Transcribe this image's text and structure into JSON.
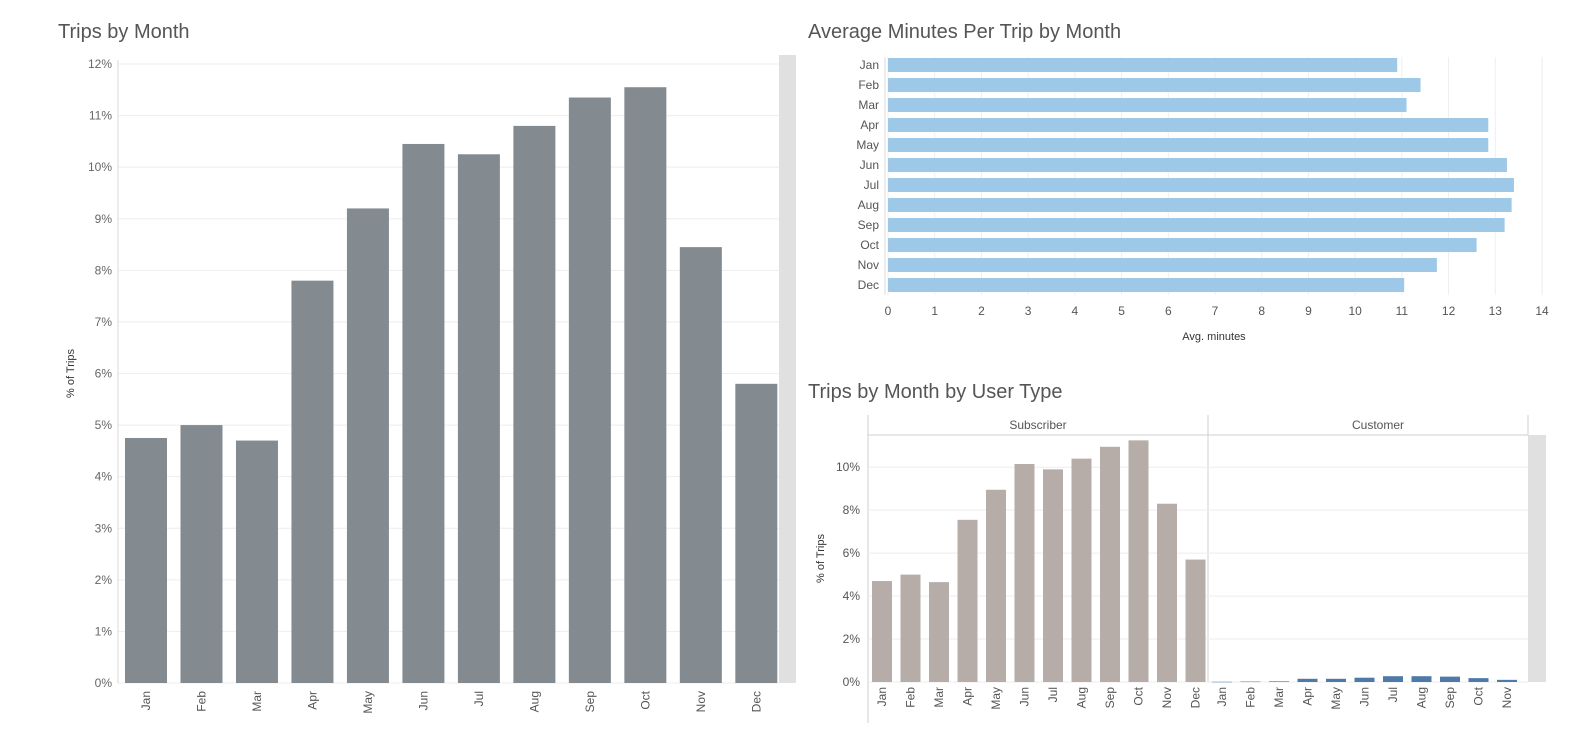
{
  "titles": {
    "trips_by_month": "Trips by Month",
    "avg_minutes": "Average Minutes Per Trip by Month",
    "by_user_type": "Trips by Month by User Type"
  },
  "colors": {
    "gray_bar": "#838b91",
    "blue_bar": "#9dc8e8",
    "subscriber_bar": "#b6ada8",
    "customer_bar": "#4f79a8",
    "scrollbar": "#e0e0e0",
    "grid": "#eeeeee"
  },
  "chart_data": [
    {
      "type": "bar",
      "title": "Trips by Month",
      "ylabel": "% of Trips",
      "xlabel": "",
      "categories": [
        "Jan",
        "Feb",
        "Mar",
        "Apr",
        "May",
        "Jun",
        "Jul",
        "Aug",
        "Sep",
        "Oct",
        "Nov",
        "Dec"
      ],
      "values": [
        4.75,
        5.0,
        4.7,
        7.8,
        9.2,
        10.45,
        10.25,
        10.8,
        11.35,
        11.55,
        8.45,
        5.8
      ],
      "ylim": [
        0,
        12
      ],
      "yticks": [
        "0%",
        "1%",
        "2%",
        "3%",
        "4%",
        "5%",
        "6%",
        "7%",
        "8%",
        "9%",
        "10%",
        "11%",
        "12%"
      ],
      "grid": true
    },
    {
      "type": "bar",
      "orientation": "horizontal",
      "title": "Average Minutes Per Trip by Month",
      "xlabel": "Avg. minutes",
      "ylabel": "",
      "categories": [
        "Jan",
        "Feb",
        "Mar",
        "Apr",
        "May",
        "Jun",
        "Jul",
        "Aug",
        "Sep",
        "Oct",
        "Nov",
        "Dec"
      ],
      "values": [
        10.9,
        11.4,
        11.1,
        12.85,
        12.85,
        13.25,
        13.4,
        13.35,
        13.2,
        12.6,
        11.75,
        11.05
      ],
      "xlim": [
        0,
        14
      ],
      "xticks": [
        "0",
        "1",
        "2",
        "3",
        "4",
        "5",
        "6",
        "7",
        "8",
        "9",
        "10",
        "11",
        "12",
        "13",
        "14"
      ],
      "grid": true
    },
    {
      "type": "bar",
      "title": "Trips by Month by User Type",
      "ylabel": "% of Trips",
      "xlabel": "",
      "ylim": [
        0,
        11.5
      ],
      "yticks": [
        "0%",
        "2%",
        "4%",
        "6%",
        "8%",
        "10%"
      ],
      "panels": [
        {
          "name": "Subscriber",
          "categories": [
            "Jan",
            "Feb",
            "Mar",
            "Apr",
            "May",
            "Jun",
            "Jul",
            "Aug",
            "Sep",
            "Oct",
            "Nov",
            "Dec"
          ],
          "values": [
            4.7,
            5.0,
            4.65,
            7.55,
            8.95,
            10.15,
            9.9,
            10.4,
            10.95,
            11.25,
            8.3,
            5.7
          ]
        },
        {
          "name": "Customer",
          "categories": [
            "Jan",
            "Feb",
            "Mar",
            "Apr",
            "May",
            "Jun",
            "Jul",
            "Aug",
            "Sep",
            "Oct",
            "Nov"
          ],
          "values": [
            0.01,
            0.02,
            0.03,
            0.15,
            0.15,
            0.2,
            0.27,
            0.27,
            0.25,
            0.18,
            0.1
          ]
        }
      ],
      "grid": true
    }
  ]
}
